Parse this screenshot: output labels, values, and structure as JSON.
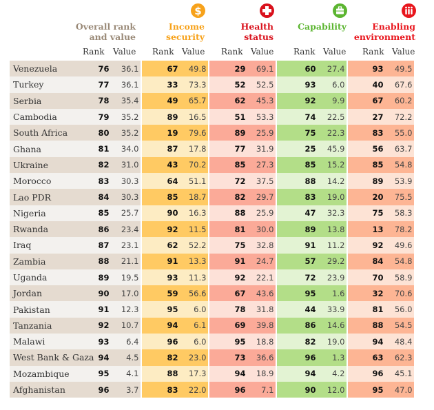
{
  "colors": {
    "overall": "#9a8a78",
    "income": "#f7a21b",
    "health": "#d9111c",
    "capability": "#5cb531",
    "enabling": "#e8161d"
  },
  "groups": {
    "overall": {
      "title_line1": "Overall rank",
      "title_line2": "and value"
    },
    "income": {
      "title_line1": "Income",
      "title_line2": "security",
      "icon": "dollar-icon"
    },
    "health": {
      "title_line1": "Health",
      "title_line2": "status",
      "icon": "cross-icon"
    },
    "capability": {
      "title_line1": "Capability",
      "title_line2": "",
      "icon": "briefcase-icon"
    },
    "enabling": {
      "title_line1": "Enabling",
      "title_line2": "environment",
      "icon": "people-icon"
    }
  },
  "subheaders": {
    "rank": "Rank",
    "value": "Value"
  },
  "rows": [
    {
      "country": "Venezuela",
      "overall_rank": "76",
      "overall_value": "36.1",
      "income_rank": "67",
      "income_value": "49.8",
      "health_rank": "29",
      "health_value": "69.1",
      "capability_rank": "60",
      "capability_value": "27.4",
      "enabling_rank": "93",
      "enabling_value": "49.5"
    },
    {
      "country": "Turkey",
      "overall_rank": "77",
      "overall_value": "36.1",
      "income_rank": "33",
      "income_value": "73.3",
      "health_rank": "52",
      "health_value": "52.5",
      "capability_rank": "93",
      "capability_value": "6.0",
      "enabling_rank": "40",
      "enabling_value": "67.6"
    },
    {
      "country": "Serbia",
      "overall_rank": "78",
      "overall_value": "35.4",
      "income_rank": "49",
      "income_value": "65.7",
      "health_rank": "62",
      "health_value": "45.3",
      "capability_rank": "92",
      "capability_value": "9.9",
      "enabling_rank": "67",
      "enabling_value": "60.2"
    },
    {
      "country": "Cambodia",
      "overall_rank": "79",
      "overall_value": "35.2",
      "income_rank": "89",
      "income_value": "16.5",
      "health_rank": "51",
      "health_value": "53.3",
      "capability_rank": "74",
      "capability_value": "22.5",
      "enabling_rank": "27",
      "enabling_value": "72.2"
    },
    {
      "country": "South Africa",
      "overall_rank": "80",
      "overall_value": "35.2",
      "income_rank": "19",
      "income_value": "79.6",
      "health_rank": "89",
      "health_value": "25.9",
      "capability_rank": "75",
      "capability_value": "22.3",
      "enabling_rank": "83",
      "enabling_value": "55.0"
    },
    {
      "country": "Ghana",
      "overall_rank": "81",
      "overall_value": "34.0",
      "income_rank": "87",
      "income_value": "17.8",
      "health_rank": "77",
      "health_value": "31.9",
      "capability_rank": "25",
      "capability_value": "45.9",
      "enabling_rank": "56",
      "enabling_value": "63.7"
    },
    {
      "country": "Ukraine",
      "overall_rank": "82",
      "overall_value": "31.0",
      "income_rank": "43",
      "income_value": "70.2",
      "health_rank": "85",
      "health_value": "27.3",
      "capability_rank": "85",
      "capability_value": "15.2",
      "enabling_rank": "85",
      "enabling_value": "54.8"
    },
    {
      "country": "Morocco",
      "overall_rank": "83",
      "overall_value": "30.3",
      "income_rank": "64",
      "income_value": "51.1",
      "health_rank": "72",
      "health_value": "37.5",
      "capability_rank": "88",
      "capability_value": "14.2",
      "enabling_rank": "89",
      "enabling_value": "53.9"
    },
    {
      "country": "Lao PDR",
      "overall_rank": "84",
      "overall_value": "30.3",
      "income_rank": "85",
      "income_value": "18.7",
      "health_rank": "82",
      "health_value": "29.7",
      "capability_rank": "83",
      "capability_value": "19.0",
      "enabling_rank": "20",
      "enabling_value": "75.5"
    },
    {
      "country": "Nigeria",
      "overall_rank": "85",
      "overall_value": "25.7",
      "income_rank": "90",
      "income_value": "16.3",
      "health_rank": "88",
      "health_value": "25.9",
      "capability_rank": "47",
      "capability_value": "32.3",
      "enabling_rank": "75",
      "enabling_value": "58.3"
    },
    {
      "country": "Rwanda",
      "overall_rank": "86",
      "overall_value": "23.4",
      "income_rank": "92",
      "income_value": "11.5",
      "health_rank": "81",
      "health_value": "30.0",
      "capability_rank": "89",
      "capability_value": "13.8",
      "enabling_rank": "13",
      "enabling_value": "78.2"
    },
    {
      "country": "Iraq",
      "overall_rank": "87",
      "overall_value": "23.1",
      "income_rank": "62",
      "income_value": "52.2",
      "health_rank": "75",
      "health_value": "32.8",
      "capability_rank": "91",
      "capability_value": "11.2",
      "enabling_rank": "92",
      "enabling_value": "49.6"
    },
    {
      "country": "Zambia",
      "overall_rank": "88",
      "overall_value": "21.1",
      "income_rank": "91",
      "income_value": "13.3",
      "health_rank": "91",
      "health_value": "24.7",
      "capability_rank": "57",
      "capability_value": "29.2",
      "enabling_rank": "84",
      "enabling_value": "54.8"
    },
    {
      "country": "Uganda",
      "overall_rank": "89",
      "overall_value": "19.5",
      "income_rank": "93",
      "income_value": "11.3",
      "health_rank": "92",
      "health_value": "22.1",
      "capability_rank": "72",
      "capability_value": "23.9",
      "enabling_rank": "70",
      "enabling_value": "58.9"
    },
    {
      "country": "Jordan",
      "overall_rank": "90",
      "overall_value": "17.0",
      "income_rank": "59",
      "income_value": "56.6",
      "health_rank": "67",
      "health_value": "43.6",
      "capability_rank": "95",
      "capability_value": "1.6",
      "enabling_rank": "32",
      "enabling_value": "70.6"
    },
    {
      "country": "Pakistan",
      "overall_rank": "91",
      "overall_value": "12.3",
      "income_rank": "95",
      "income_value": "6.0",
      "health_rank": "78",
      "health_value": "31.8",
      "capability_rank": "44",
      "capability_value": "33.9",
      "enabling_rank": "81",
      "enabling_value": "56.0"
    },
    {
      "country": "Tanzania",
      "overall_rank": "92",
      "overall_value": "10.7",
      "income_rank": "94",
      "income_value": "6.1",
      "health_rank": "69",
      "health_value": "39.8",
      "capability_rank": "86",
      "capability_value": "14.6",
      "enabling_rank": "88",
      "enabling_value": "54.5"
    },
    {
      "country": "Malawi",
      "overall_rank": "93",
      "overall_value": "6.4",
      "income_rank": "96",
      "income_value": "6.0",
      "health_rank": "95",
      "health_value": "18.8",
      "capability_rank": "82",
      "capability_value": "19.0",
      "enabling_rank": "94",
      "enabling_value": "48.4"
    },
    {
      "country": "West Bank & Gaza",
      "overall_rank": "94",
      "overall_value": "4.5",
      "income_rank": "82",
      "income_value": "23.0",
      "health_rank": "73",
      "health_value": "36.6",
      "capability_rank": "96",
      "capability_value": "1.3",
      "enabling_rank": "63",
      "enabling_value": "62.3"
    },
    {
      "country": "Mozambique",
      "overall_rank": "95",
      "overall_value": "4.1",
      "income_rank": "88",
      "income_value": "17.3",
      "health_rank": "94",
      "health_value": "18.9",
      "capability_rank": "94",
      "capability_value": "4.2",
      "enabling_rank": "96",
      "enabling_value": "45.1"
    },
    {
      "country": "Afghanistan",
      "overall_rank": "96",
      "overall_value": "3.7",
      "income_rank": "83",
      "income_value": "22.0",
      "health_rank": "96",
      "health_value": "7.1",
      "capability_rank": "90",
      "capability_value": "12.0",
      "enabling_rank": "95",
      "enabling_value": "47.0"
    }
  ]
}
